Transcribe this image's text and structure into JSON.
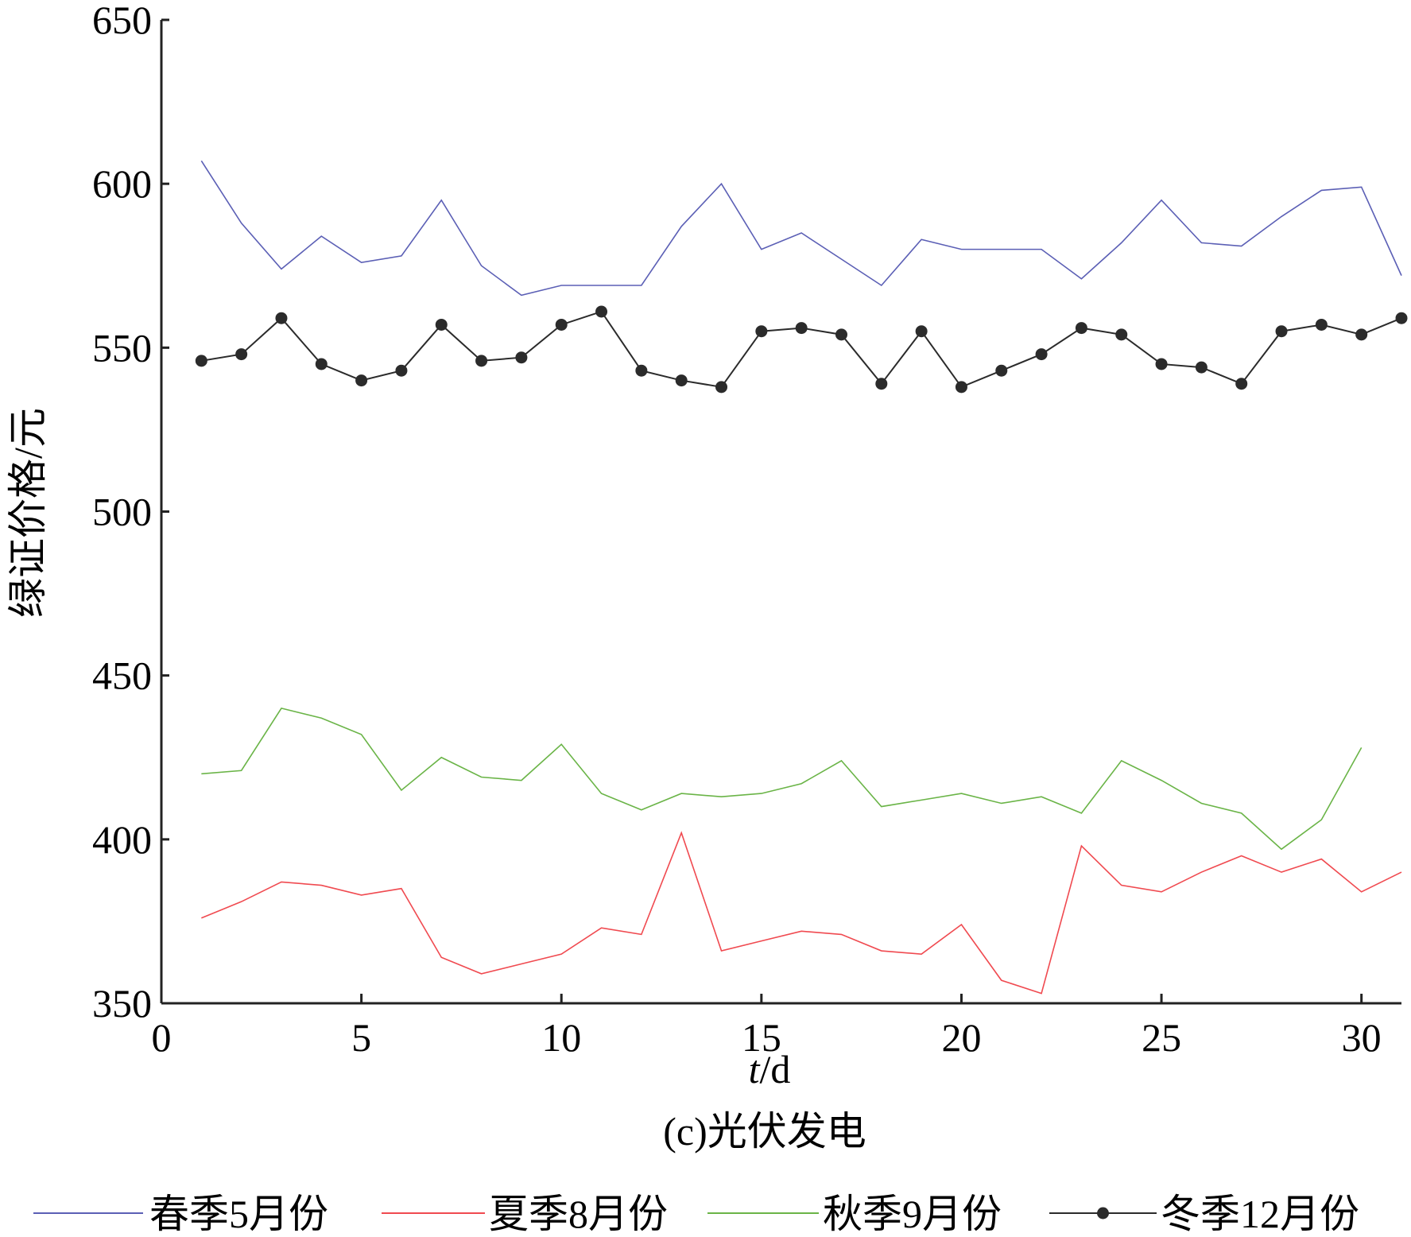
{
  "chart_data": {
    "type": "line",
    "caption": "(c)光伏发电",
    "xlabel_italic": "t",
    "xlabel_rest": "/d",
    "ylabel": "绿证价格/元",
    "xlim": [
      0,
      31
    ],
    "ylim": [
      350,
      650
    ],
    "xticks": [
      0,
      5,
      10,
      15,
      20,
      25,
      30
    ],
    "yticks": [
      350,
      400,
      450,
      500,
      550,
      600,
      650
    ],
    "x": [
      1,
      2,
      3,
      4,
      5,
      6,
      7,
      8,
      9,
      10,
      11,
      12,
      13,
      14,
      15,
      16,
      17,
      18,
      19,
      20,
      21,
      22,
      23,
      24,
      25,
      26,
      27,
      28,
      29,
      30,
      31
    ],
    "series": [
      {
        "name": "春季5月份",
        "color": "#5b5fb5",
        "marker": false,
        "values": [
          607,
          588,
          574,
          584,
          576,
          578,
          595,
          575,
          566,
          569,
          569,
          569,
          587,
          600,
          580,
          585,
          577,
          569,
          583,
          580,
          580,
          580,
          571,
          582,
          595,
          582,
          581,
          590,
          598,
          599,
          572
        ]
      },
      {
        "name": "夏季8月份",
        "color": "#f04a50",
        "marker": false,
        "values": [
          376,
          381,
          387,
          386,
          383,
          385,
          364,
          359,
          362,
          365,
          373,
          371,
          402,
          366,
          369,
          372,
          371,
          366,
          365,
          374,
          357,
          353,
          398,
          386,
          384,
          390,
          395,
          390,
          394,
          384,
          390
        ]
      },
      {
        "name": "秋季9月份",
        "color": "#6ab447",
        "marker": false,
        "values": [
          420,
          421,
          440,
          437,
          432,
          415,
          425,
          419,
          418,
          429,
          414,
          409,
          414,
          413,
          414,
          417,
          424,
          410,
          412,
          414,
          411,
          413,
          408,
          424,
          418,
          411,
          408,
          397,
          406,
          428,
          null
        ]
      },
      {
        "name": "冬季12月份",
        "color": "#2b2b2b",
        "marker": true,
        "values": [
          546,
          548,
          559,
          545,
          540,
          543,
          557,
          546,
          547,
          557,
          561,
          543,
          540,
          538,
          555,
          556,
          554,
          539,
          555,
          538,
          543,
          548,
          556,
          554,
          545,
          544,
          539,
          555,
          557,
          554,
          559
        ]
      }
    ]
  }
}
